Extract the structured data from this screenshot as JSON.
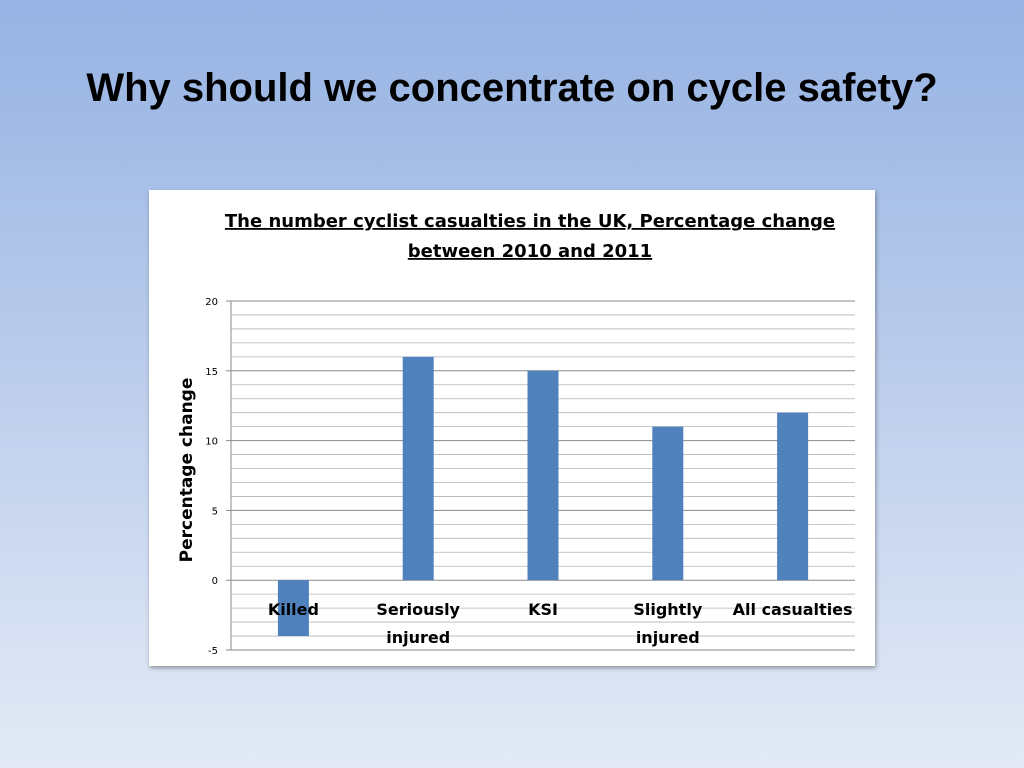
{
  "slide": {
    "title": "Why should we concentrate on cycle safety?"
  },
  "chart_data": {
    "type": "bar",
    "title_lines": [
      "The number cyclist casualties in the UK, Percentage change",
      "between 2010 and 2011"
    ],
    "xlabel": "",
    "ylabel": "Percentage change",
    "categories": [
      [
        "Killed"
      ],
      [
        "Seriously",
        "injured"
      ],
      [
        "KSI"
      ],
      [
        "Slightly",
        "injured"
      ],
      [
        "All casualties"
      ]
    ],
    "values": [
      -4,
      16,
      15,
      11,
      12
    ],
    "ylim": [
      -5,
      20
    ],
    "yticks": [
      -5,
      0,
      5,
      10,
      15,
      20
    ],
    "minor_gridline_step": 1,
    "grid": true,
    "legend": "none",
    "bar_color": "#4f81bd"
  }
}
